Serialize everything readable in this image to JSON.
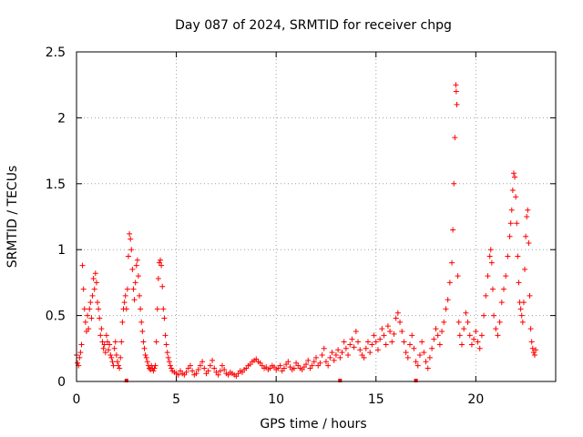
{
  "chart_data": {
    "type": "scatter",
    "title": "Day 087 of 2024, SRMTID for receiver chpg",
    "xlabel": "GPS time / hours",
    "ylabel": "SRMTID / TECUs",
    "xlim": [
      0,
      24
    ],
    "ylim": [
      0,
      2.5
    ],
    "grid": true,
    "marker": "+",
    "color": "#ff0000",
    "xticks": [
      0,
      5,
      10,
      15,
      20
    ],
    "xtick_labels": [
      "0",
      "5",
      "10",
      "15",
      "20"
    ],
    "yticks": [
      0,
      0.5,
      1,
      1.5,
      2,
      2.5
    ],
    "ytick_labels": [
      "0",
      "0.5",
      "1",
      "1.5",
      "2",
      "2.5"
    ],
    "gap_markers_x": [
      2.5,
      13.2,
      17.0
    ],
    "series": [
      {
        "name": "SRMTID",
        "points": [
          [
            0.0,
            0.2
          ],
          [
            0.05,
            0.14
          ],
          [
            0.1,
            0.12
          ],
          [
            0.15,
            0.18
          ],
          [
            0.2,
            0.22
          ],
          [
            0.25,
            0.28
          ],
          [
            0.3,
            0.88
          ],
          [
            0.35,
            0.7
          ],
          [
            0.4,
            0.55
          ],
          [
            0.45,
            0.45
          ],
          [
            0.5,
            0.38
          ],
          [
            0.55,
            0.5
          ],
          [
            0.6,
            0.4
          ],
          [
            0.65,
            0.55
          ],
          [
            0.7,
            0.6
          ],
          [
            0.75,
            0.48
          ],
          [
            0.8,
            0.65
          ],
          [
            0.85,
            0.78
          ],
          [
            0.9,
            0.7
          ],
          [
            0.95,
            0.82
          ],
          [
            1.0,
            0.75
          ],
          [
            1.05,
            0.6
          ],
          [
            1.1,
            0.55
          ],
          [
            1.15,
            0.48
          ],
          [
            1.2,
            0.35
          ],
          [
            1.25,
            0.4
          ],
          [
            1.3,
            0.3
          ],
          [
            1.35,
            0.25
          ],
          [
            1.4,
            0.28
          ],
          [
            1.45,
            0.22
          ],
          [
            1.5,
            0.35
          ],
          [
            1.55,
            0.3
          ],
          [
            1.6,
            0.24
          ],
          [
            1.65,
            0.28
          ],
          [
            1.7,
            0.2
          ],
          [
            1.75,
            0.18
          ],
          [
            1.8,
            0.15
          ],
          [
            1.85,
            0.12
          ],
          [
            1.9,
            0.25
          ],
          [
            1.95,
            0.3
          ],
          [
            2.0,
            0.2
          ],
          [
            2.05,
            0.15
          ],
          [
            2.1,
            0.12
          ],
          [
            2.15,
            0.1
          ],
          [
            2.2,
            0.18
          ],
          [
            2.25,
            0.3
          ],
          [
            2.3,
            0.45
          ],
          [
            2.35,
            0.55
          ],
          [
            2.4,
            0.6
          ],
          [
            2.45,
            0.65
          ],
          [
            2.5,
            0.55
          ],
          [
            2.55,
            0.7
          ],
          [
            2.6,
            0.95
          ],
          [
            2.65,
            1.12
          ],
          [
            2.7,
            1.08
          ],
          [
            2.75,
            1.0
          ],
          [
            2.8,
            0.85
          ],
          [
            2.85,
            0.7
          ],
          [
            2.9,
            0.62
          ],
          [
            2.95,
            0.75
          ],
          [
            3.0,
            0.88
          ],
          [
            3.05,
            0.92
          ],
          [
            3.1,
            0.8
          ],
          [
            3.15,
            0.65
          ],
          [
            3.2,
            0.55
          ],
          [
            3.25,
            0.45
          ],
          [
            3.3,
            0.38
          ],
          [
            3.35,
            0.3
          ],
          [
            3.4,
            0.25
          ],
          [
            3.45,
            0.2
          ],
          [
            3.5,
            0.18
          ],
          [
            3.55,
            0.15
          ],
          [
            3.6,
            0.12
          ],
          [
            3.65,
            0.1
          ],
          [
            3.7,
            0.09
          ],
          [
            3.75,
            0.12
          ],
          [
            3.8,
            0.1
          ],
          [
            3.85,
            0.08
          ],
          [
            3.9,
            0.1
          ],
          [
            3.95,
            0.12
          ],
          [
            4.0,
            0.3
          ],
          [
            4.05,
            0.55
          ],
          [
            4.1,
            0.78
          ],
          [
            4.15,
            0.9
          ],
          [
            4.2,
            0.92
          ],
          [
            4.25,
            0.88
          ],
          [
            4.3,
            0.72
          ],
          [
            4.35,
            0.55
          ],
          [
            4.4,
            0.48
          ],
          [
            4.45,
            0.35
          ],
          [
            4.5,
            0.28
          ],
          [
            4.55,
            0.22
          ],
          [
            4.6,
            0.18
          ],
          [
            4.65,
            0.15
          ],
          [
            4.7,
            0.12
          ],
          [
            4.75,
            0.1
          ],
          [
            4.8,
            0.08
          ],
          [
            4.9,
            0.07
          ],
          [
            5.0,
            0.06
          ],
          [
            5.1,
            0.05
          ],
          [
            5.2,
            0.08
          ],
          [
            5.3,
            0.06
          ],
          [
            5.4,
            0.05
          ],
          [
            5.5,
            0.07
          ],
          [
            5.6,
            0.1
          ],
          [
            5.7,
            0.12
          ],
          [
            5.8,
            0.08
          ],
          [
            5.9,
            0.05
          ],
          [
            6.0,
            0.06
          ],
          [
            6.1,
            0.09
          ],
          [
            6.2,
            0.12
          ],
          [
            6.3,
            0.15
          ],
          [
            6.4,
            0.1
          ],
          [
            6.5,
            0.06
          ],
          [
            6.6,
            0.08
          ],
          [
            6.7,
            0.12
          ],
          [
            6.8,
            0.16
          ],
          [
            6.9,
            0.1
          ],
          [
            7.0,
            0.07
          ],
          [
            7.1,
            0.05
          ],
          [
            7.2,
            0.08
          ],
          [
            7.3,
            0.12
          ],
          [
            7.4,
            0.09
          ],
          [
            7.5,
            0.06
          ],
          [
            7.6,
            0.05
          ],
          [
            7.7,
            0.07
          ],
          [
            7.8,
            0.06
          ],
          [
            7.9,
            0.05
          ],
          [
            8.0,
            0.04
          ],
          [
            8.1,
            0.06
          ],
          [
            8.2,
            0.08
          ],
          [
            8.3,
            0.07
          ],
          [
            8.4,
            0.09
          ],
          [
            8.5,
            0.1
          ],
          [
            8.6,
            0.12
          ],
          [
            8.7,
            0.13
          ],
          [
            8.8,
            0.15
          ],
          [
            8.9,
            0.16
          ],
          [
            9.0,
            0.17
          ],
          [
            9.1,
            0.15
          ],
          [
            9.2,
            0.14
          ],
          [
            9.3,
            0.12
          ],
          [
            9.4,
            0.1
          ],
          [
            9.5,
            0.11
          ],
          [
            9.6,
            0.09
          ],
          [
            9.7,
            0.1
          ],
          [
            9.8,
            0.12
          ],
          [
            9.9,
            0.11
          ],
          [
            10.0,
            0.09
          ],
          [
            10.1,
            0.1
          ],
          [
            10.2,
            0.12
          ],
          [
            10.3,
            0.08
          ],
          [
            10.4,
            0.1
          ],
          [
            10.5,
            0.13
          ],
          [
            10.6,
            0.15
          ],
          [
            10.7,
            0.11
          ],
          [
            10.8,
            0.09
          ],
          [
            10.9,
            0.1
          ],
          [
            11.0,
            0.14
          ],
          [
            11.1,
            0.12
          ],
          [
            11.2,
            0.1
          ],
          [
            11.3,
            0.09
          ],
          [
            11.4,
            0.11
          ],
          [
            11.5,
            0.13
          ],
          [
            11.6,
            0.16
          ],
          [
            11.7,
            0.1
          ],
          [
            11.8,
            0.12
          ],
          [
            11.9,
            0.15
          ],
          [
            12.0,
            0.18
          ],
          [
            12.1,
            0.12
          ],
          [
            12.2,
            0.14
          ],
          [
            12.3,
            0.2
          ],
          [
            12.4,
            0.25
          ],
          [
            12.5,
            0.15
          ],
          [
            12.6,
            0.12
          ],
          [
            12.7,
            0.18
          ],
          [
            12.8,
            0.22
          ],
          [
            12.9,
            0.16
          ],
          [
            13.0,
            0.2
          ],
          [
            13.1,
            0.24
          ],
          [
            13.2,
            0.18
          ],
          [
            13.3,
            0.22
          ],
          [
            13.4,
            0.3
          ],
          [
            13.5,
            0.25
          ],
          [
            13.6,
            0.2
          ],
          [
            13.7,
            0.28
          ],
          [
            13.8,
            0.32
          ],
          [
            13.9,
            0.26
          ],
          [
            14.0,
            0.38
          ],
          [
            14.1,
            0.3
          ],
          [
            14.2,
            0.24
          ],
          [
            14.3,
            0.2
          ],
          [
            14.4,
            0.18
          ],
          [
            14.5,
            0.25
          ],
          [
            14.6,
            0.3
          ],
          [
            14.7,
            0.22
          ],
          [
            14.8,
            0.28
          ],
          [
            14.9,
            0.35
          ],
          [
            15.0,
            0.3
          ],
          [
            15.1,
            0.24
          ],
          [
            15.2,
            0.32
          ],
          [
            15.3,
            0.4
          ],
          [
            15.4,
            0.35
          ],
          [
            15.5,
            0.28
          ],
          [
            15.6,
            0.42
          ],
          [
            15.7,
            0.38
          ],
          [
            15.8,
            0.3
          ],
          [
            15.9,
            0.36
          ],
          [
            16.0,
            0.48
          ],
          [
            16.1,
            0.52
          ],
          [
            16.2,
            0.45
          ],
          [
            16.3,
            0.38
          ],
          [
            16.4,
            0.3
          ],
          [
            16.5,
            0.22
          ],
          [
            16.6,
            0.18
          ],
          [
            16.7,
            0.28
          ],
          [
            16.8,
            0.35
          ],
          [
            16.9,
            0.25
          ],
          [
            17.0,
            0.15
          ],
          [
            17.1,
            0.12
          ],
          [
            17.2,
            0.2
          ],
          [
            17.3,
            0.3
          ],
          [
            17.4,
            0.22
          ],
          [
            17.5,
            0.15
          ],
          [
            17.6,
            0.1
          ],
          [
            17.7,
            0.18
          ],
          [
            17.8,
            0.25
          ],
          [
            17.9,
            0.32
          ],
          [
            18.0,
            0.4
          ],
          [
            18.1,
            0.35
          ],
          [
            18.2,
            0.28
          ],
          [
            18.3,
            0.38
          ],
          [
            18.4,
            0.45
          ],
          [
            18.5,
            0.55
          ],
          [
            18.6,
            0.62
          ],
          [
            18.7,
            0.75
          ],
          [
            18.8,
            0.9
          ],
          [
            18.85,
            1.15
          ],
          [
            18.9,
            1.5
          ],
          [
            18.95,
            1.85
          ],
          [
            19.0,
            2.25
          ],
          [
            19.02,
            2.2
          ],
          [
            19.05,
            2.1
          ],
          [
            19.1,
            0.8
          ],
          [
            19.15,
            0.45
          ],
          [
            19.2,
            0.35
          ],
          [
            19.3,
            0.28
          ],
          [
            19.4,
            0.4
          ],
          [
            19.5,
            0.52
          ],
          [
            19.6,
            0.45
          ],
          [
            19.7,
            0.35
          ],
          [
            19.8,
            0.28
          ],
          [
            19.9,
            0.32
          ],
          [
            20.0,
            0.38
          ],
          [
            20.1,
            0.3
          ],
          [
            20.2,
            0.25
          ],
          [
            20.3,
            0.35
          ],
          [
            20.4,
            0.5
          ],
          [
            20.5,
            0.65
          ],
          [
            20.6,
            0.8
          ],
          [
            20.7,
            0.95
          ],
          [
            20.75,
            1.0
          ],
          [
            20.8,
            0.9
          ],
          [
            20.85,
            0.7
          ],
          [
            20.9,
            0.5
          ],
          [
            21.0,
            0.4
          ],
          [
            21.1,
            0.35
          ],
          [
            21.2,
            0.45
          ],
          [
            21.3,
            0.6
          ],
          [
            21.4,
            0.7
          ],
          [
            21.5,
            0.8
          ],
          [
            21.6,
            0.95
          ],
          [
            21.7,
            1.1
          ],
          [
            21.75,
            1.2
          ],
          [
            21.8,
            1.3
          ],
          [
            21.85,
            1.45
          ],
          [
            21.9,
            1.58
          ],
          [
            21.95,
            1.55
          ],
          [
            22.0,
            1.4
          ],
          [
            22.05,
            1.2
          ],
          [
            22.1,
            0.95
          ],
          [
            22.15,
            0.75
          ],
          [
            22.2,
            0.6
          ],
          [
            22.25,
            0.55
          ],
          [
            22.3,
            0.5
          ],
          [
            22.35,
            0.45
          ],
          [
            22.4,
            0.6
          ],
          [
            22.45,
            0.85
          ],
          [
            22.5,
            1.1
          ],
          [
            22.55,
            1.25
          ],
          [
            22.6,
            1.3
          ],
          [
            22.65,
            1.05
          ],
          [
            22.7,
            0.65
          ],
          [
            22.75,
            0.4
          ],
          [
            22.8,
            0.3
          ],
          [
            22.85,
            0.25
          ],
          [
            22.9,
            0.22
          ],
          [
            22.95,
            0.2
          ],
          [
            23.0,
            0.24
          ]
        ]
      }
    ]
  }
}
